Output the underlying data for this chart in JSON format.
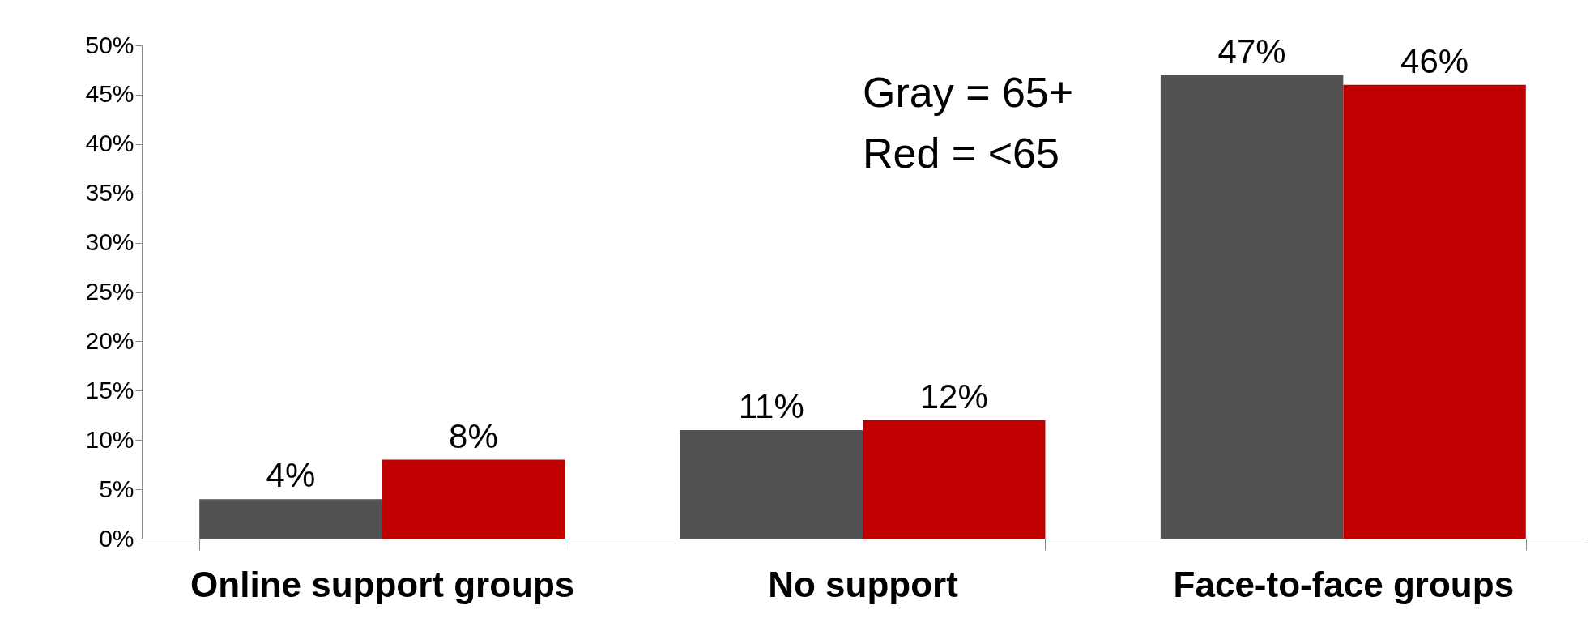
{
  "chart_data": {
    "type": "bar",
    "categories": [
      "Online support groups",
      "No support",
      "Face-to-face groups"
    ],
    "series": [
      {
        "color": "#525252",
        "values": [
          4,
          11,
          47
        ],
        "value_labels": [
          "4%",
          "11%",
          "47%"
        ]
      },
      {
        "color": "#c00000",
        "values": [
          8,
          12,
          46
        ],
        "value_labels": [
          "8%",
          "12%",
          "46%"
        ]
      }
    ],
    "ylim": [
      0,
      50
    ],
    "yticks": [
      {
        "value": 0,
        "label": "0%"
      },
      {
        "value": 5,
        "label": "5%"
      },
      {
        "value": 10,
        "label": "10%"
      },
      {
        "value": 15,
        "label": "15%"
      },
      {
        "value": 20,
        "label": "20%"
      },
      {
        "value": 25,
        "label": "25%"
      },
      {
        "value": 30,
        "label": "30%"
      },
      {
        "value": 35,
        "label": "35%"
      },
      {
        "value": 40,
        "label": "40%"
      },
      {
        "value": 45,
        "label": "45%"
      },
      {
        "value": 50,
        "label": "50%"
      }
    ],
    "annotations": [
      "Gray = 65+",
      "Red = <65"
    ],
    "grid": false,
    "legend": false
  }
}
